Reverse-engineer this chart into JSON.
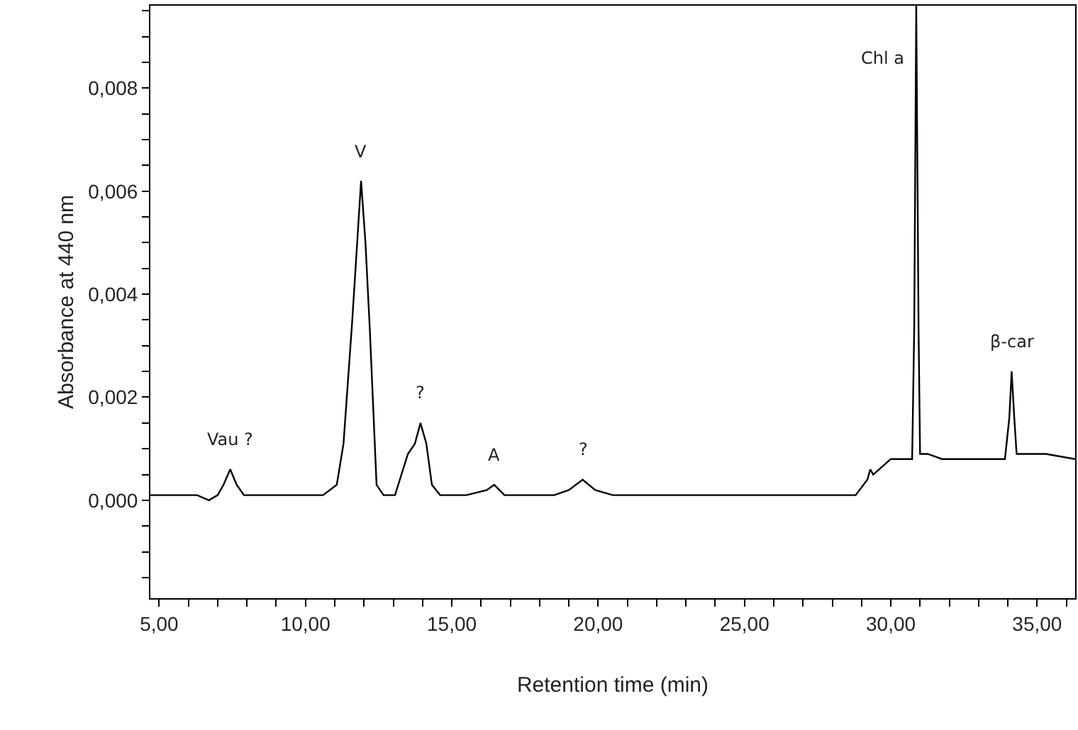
{
  "chart_data": {
    "type": "line",
    "xlabel": "Retention time (min)",
    "ylabel": "Absorbance at 440 nm",
    "x": [
      4.7,
      5.5,
      6.3,
      6.7,
      7.0,
      7.2,
      7.43,
      7.65,
      7.9,
      8.5,
      9.5,
      10.6,
      11.07,
      11.3,
      11.6,
      11.9,
      12.05,
      12.2,
      12.43,
      12.67,
      13.06,
      13.5,
      13.74,
      13.93,
      14.13,
      14.32,
      14.6,
      15.5,
      16.2,
      16.45,
      16.8,
      17.5,
      18.5,
      19.0,
      19.47,
      19.9,
      20.5,
      22.0,
      24.0,
      25.5,
      27.0,
      28.8,
      29.2,
      29.3,
      29.4,
      30.0,
      30.54,
      30.73,
      30.8,
      30.87,
      30.95,
      31.0,
      31.26,
      31.75,
      32.5,
      33.4,
      33.9,
      34.05,
      34.13,
      34.22,
      34.3,
      34.66,
      35.3,
      36.3
    ],
    "series": [
      {
        "color": "#000000",
        "values": [
          0.0001,
          0.0001,
          0.0001,
          0.0,
          0.0001,
          0.0003,
          0.0006,
          0.0003,
          0.0001,
          0.0001,
          0.0001,
          0.0001,
          0.0003,
          0.0011,
          0.0035,
          0.0062,
          0.005,
          0.0033,
          0.0003,
          0.0001,
          0.0001,
          0.0009,
          0.0011,
          0.0015,
          0.0011,
          0.0003,
          0.0001,
          0.0001,
          0.0002,
          0.0003,
          0.0001,
          0.0001,
          0.0001,
          0.0002,
          0.0004,
          0.0002,
          0.0001,
          0.0001,
          0.0001,
          0.0001,
          0.0001,
          0.0001,
          0.0004,
          0.0006,
          0.0005,
          0.0008,
          0.0008,
          0.0008,
          0.0033,
          0.0096,
          0.0033,
          0.0009,
          0.0009,
          0.0008,
          0.0008,
          0.0008,
          0.0008,
          0.0016,
          0.0025,
          0.0016,
          0.0009,
          0.0009,
          0.0009,
          0.0008
        ]
      }
    ],
    "xlim": [
      4.7,
      36.3
    ],
    "ylim": [
      -0.0019,
      0.0096
    ],
    "xticks": [
      {
        "value": 5,
        "label": "5,00"
      },
      {
        "value": 6,
        "label": null
      },
      {
        "value": 7,
        "label": null
      },
      {
        "value": 8,
        "label": null
      },
      {
        "value": 9,
        "label": null
      },
      {
        "value": 10,
        "label": "10,00"
      },
      {
        "value": 11,
        "label": null
      },
      {
        "value": 12,
        "label": null
      },
      {
        "value": 13,
        "label": null
      },
      {
        "value": 14,
        "label": null
      },
      {
        "value": 15,
        "label": "15,00"
      },
      {
        "value": 16,
        "label": null
      },
      {
        "value": 17,
        "label": null
      },
      {
        "value": 18,
        "label": null
      },
      {
        "value": 19,
        "label": null
      },
      {
        "value": 20,
        "label": "20,00"
      },
      {
        "value": 21,
        "label": null
      },
      {
        "value": 22,
        "label": null
      },
      {
        "value": 23,
        "label": null
      },
      {
        "value": 24,
        "label": null
      },
      {
        "value": 25,
        "label": "25,00"
      },
      {
        "value": 26,
        "label": null
      },
      {
        "value": 27,
        "label": null
      },
      {
        "value": 28,
        "label": null
      },
      {
        "value": 29,
        "label": null
      },
      {
        "value": 30,
        "label": "30,00"
      },
      {
        "value": 31,
        "label": null
      },
      {
        "value": 32,
        "label": null
      },
      {
        "value": 33,
        "label": null
      },
      {
        "value": 34,
        "label": null
      },
      {
        "value": 35,
        "label": "35,00"
      },
      {
        "value": 36,
        "label": null
      }
    ],
    "yticks": [
      {
        "value": -0.0015,
        "label": null
      },
      {
        "value": -0.001,
        "label": null
      },
      {
        "value": -0.0005,
        "label": null
      },
      {
        "value": 0,
        "label": "0,000"
      },
      {
        "value": 0.0005,
        "label": null
      },
      {
        "value": 0.001,
        "label": null
      },
      {
        "value": 0.0015,
        "label": null
      },
      {
        "value": 0.002,
        "label": "0,002"
      },
      {
        "value": 0.0025,
        "label": null
      },
      {
        "value": 0.003,
        "label": null
      },
      {
        "value": 0.0035,
        "label": null
      },
      {
        "value": 0.004,
        "label": "0,004"
      },
      {
        "value": 0.0045,
        "label": null
      },
      {
        "value": 0.005,
        "label": null
      },
      {
        "value": 0.0055,
        "label": null
      },
      {
        "value": 0.006,
        "label": "0,006"
      },
      {
        "value": 0.0065,
        "label": null
      },
      {
        "value": 0.007,
        "label": null
      },
      {
        "value": 0.0075,
        "label": null
      },
      {
        "value": 0.008,
        "label": "0,008"
      },
      {
        "value": 0.0085,
        "label": null
      },
      {
        "value": 0.009,
        "label": null
      },
      {
        "value": 0.0095,
        "label": null
      }
    ],
    "annotations": [
      {
        "text": "Vau ?",
        "x": 7.43,
        "y": 0.0006
      },
      {
        "text": "V",
        "x": 11.9,
        "y": 0.0062
      },
      {
        "text": "?",
        "x": 13.93,
        "y": 0.0015
      },
      {
        "text": "A",
        "x": 16.45,
        "y": 0.0003
      },
      {
        "text": "?",
        "x": 19.47,
        "y": 0.0004
      },
      {
        "text": "Chl a",
        "x": 30.87,
        "y": 0.0096
      },
      {
        "text": "β-car",
        "x": 34.13,
        "y": 0.0025
      }
    ],
    "marker": "none",
    "line_style": "solid"
  }
}
